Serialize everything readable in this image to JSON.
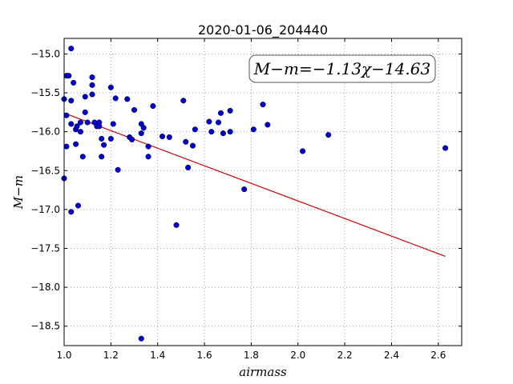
{
  "chart_data": {
    "type": "scatter",
    "title": "2020-01-06_204440",
    "xlabel": "airmass",
    "ylabel": "M−m",
    "xlim": [
      1.0,
      2.7
    ],
    "ylim": [
      -18.75,
      -14.8
    ],
    "y_inverted": false,
    "grid": true,
    "x_ticks": [
      1.0,
      1.2,
      1.4,
      1.6,
      1.8,
      2.0,
      2.2,
      2.4,
      2.6
    ],
    "x_tick_labels": [
      "1.0",
      "1.2",
      "1.4",
      "1.6",
      "1.8",
      "2.0",
      "2.2",
      "2.4",
      "2.6"
    ],
    "y_ticks": [
      -15.0,
      -15.5,
      -16.0,
      -16.5,
      -17.0,
      -17.5,
      -18.0,
      -18.5
    ],
    "y_tick_labels": [
      "−15.0",
      "−15.5",
      "−16.0",
      "−16.5",
      "−17.0",
      "−17.5",
      "−18.0",
      "−18.5"
    ],
    "annotation": "M−m=−1.13χ−14.63",
    "colors": {
      "points": "#0000cc",
      "fit_line": "#cc0000",
      "grid": "#a0a0a0"
    },
    "fit": {
      "slope": -1.13,
      "intercept": -14.63,
      "x_range": [
        1.0,
        2.63
      ]
    },
    "series": [
      {
        "points": [
          [
            1.0,
            -15.58
          ],
          [
            1.0,
            -16.6
          ],
          [
            1.01,
            -15.28
          ],
          [
            1.01,
            -15.79
          ],
          [
            1.01,
            -16.19
          ],
          [
            1.02,
            -15.28
          ],
          [
            1.03,
            -14.93
          ],
          [
            1.03,
            -15.6
          ],
          [
            1.03,
            -15.9
          ],
          [
            1.03,
            -17.03
          ],
          [
            1.04,
            -15.37
          ],
          [
            1.05,
            -16.16
          ],
          [
            1.05,
            -15.97
          ],
          [
            1.055,
            -15.93
          ],
          [
            1.06,
            -16.95
          ],
          [
            1.07,
            -15.88
          ],
          [
            1.07,
            -16.0
          ],
          [
            1.08,
            -16.32
          ],
          [
            1.09,
            -15.55
          ],
          [
            1.09,
            -15.75
          ],
          [
            1.1,
            -15.88
          ],
          [
            1.12,
            -15.3
          ],
          [
            1.12,
            -15.4
          ],
          [
            1.12,
            -15.52
          ],
          [
            1.13,
            -15.88
          ],
          [
            1.14,
            -15.93
          ],
          [
            1.15,
            -15.88
          ],
          [
            1.15,
            -15.93
          ],
          [
            1.16,
            -16.09
          ],
          [
            1.16,
            -16.32
          ],
          [
            1.17,
            -16.17
          ],
          [
            1.2,
            -15.43
          ],
          [
            1.2,
            -16.09
          ],
          [
            1.21,
            -15.9
          ],
          [
            1.22,
            -15.57
          ],
          [
            1.23,
            -16.49
          ],
          [
            1.27,
            -15.58
          ],
          [
            1.28,
            -16.07
          ],
          [
            1.29,
            -16.1
          ],
          [
            1.3,
            -15.72
          ],
          [
            1.33,
            -15.9
          ],
          [
            1.33,
            -16.02
          ],
          [
            1.33,
            -18.66
          ],
          [
            1.34,
            -15.95
          ],
          [
            1.36,
            -16.19
          ],
          [
            1.36,
            -16.32
          ],
          [
            1.38,
            -15.67
          ],
          [
            1.42,
            -16.06
          ],
          [
            1.45,
            -16.07
          ],
          [
            1.48,
            -17.2
          ],
          [
            1.51,
            -15.6
          ],
          [
            1.52,
            -16.13
          ],
          [
            1.53,
            -16.46
          ],
          [
            1.55,
            -16.18
          ],
          [
            1.56,
            -15.97
          ],
          [
            1.62,
            -15.87
          ],
          [
            1.63,
            -16.0
          ],
          [
            1.66,
            -15.88
          ],
          [
            1.67,
            -15.76
          ],
          [
            1.68,
            -16.02
          ],
          [
            1.71,
            -15.73
          ],
          [
            1.71,
            -16.0
          ],
          [
            1.77,
            -16.74
          ],
          [
            1.81,
            -15.97
          ],
          [
            1.85,
            -15.65
          ],
          [
            1.87,
            -15.91
          ],
          [
            2.02,
            -16.25
          ],
          [
            2.13,
            -16.04
          ],
          [
            2.63,
            -16.21
          ]
        ]
      }
    ]
  }
}
